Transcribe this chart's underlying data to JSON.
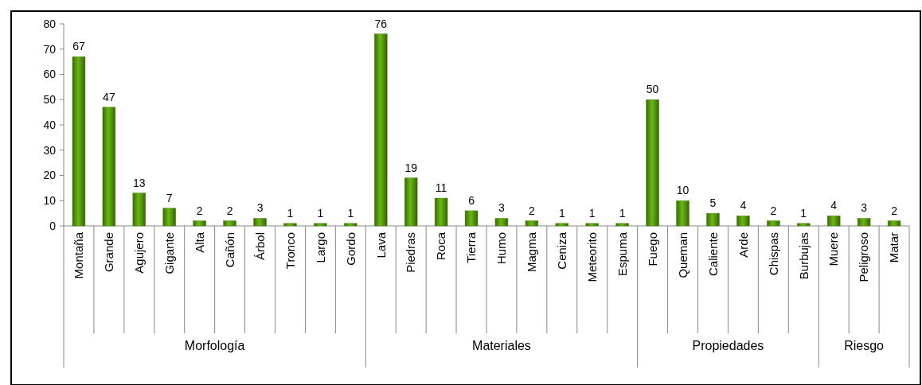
{
  "chart_data": {
    "type": "bar",
    "categories": [
      "Montaña",
      "Grande",
      "Agujero",
      "Gigante",
      "Alta",
      "Cañón",
      "Árbol",
      "Tronco",
      "Largo",
      "Gordo",
      "Lava",
      "Piedras",
      "Roca",
      "Tierra",
      "Humo",
      "Magma",
      "Ceniza",
      "Meteorito",
      "Espuma",
      "Fuego",
      "Queman",
      "Caliente",
      "Arde",
      "Chispas",
      "Burbujas",
      "Muere",
      "Peligroso",
      "Matar"
    ],
    "values": [
      67,
      47,
      13,
      7,
      2,
      2,
      3,
      1,
      1,
      1,
      76,
      19,
      11,
      6,
      3,
      2,
      1,
      1,
      1,
      50,
      10,
      5,
      4,
      2,
      1,
      4,
      3,
      2
    ],
    "color": "#4e8c0c",
    "ylim": [
      0,
      80
    ],
    "yticks": [
      0,
      10,
      20,
      30,
      40,
      50,
      60,
      70,
      80
    ],
    "data_labels": true,
    "annotations": [
      "Morfología",
      "Materiales",
      "Propiedades",
      "Riesgo"
    ]
  }
}
